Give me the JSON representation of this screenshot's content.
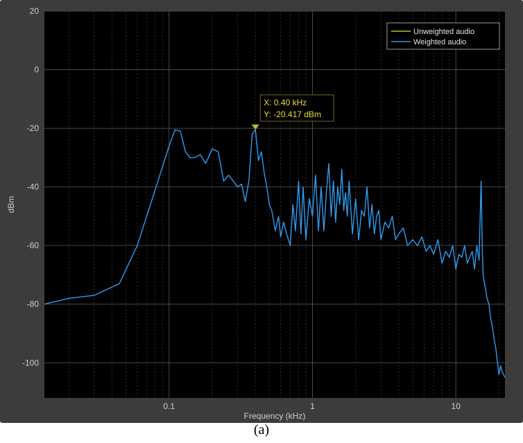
{
  "caption": "(a)",
  "colors": {
    "figure_background": "#3c3c3c",
    "plot_background": "#000000",
    "grid": "#3a3a3a",
    "tick_text": "#cfcfcf",
    "unweighted": "#c6c23a",
    "weighted": "#2f9cf0",
    "datatip_text": "#e8e030",
    "legend_border": "#9a9a9a"
  },
  "chart_data": {
    "type": "line",
    "title": "",
    "xlabel": "Frequency (kHz)",
    "ylabel": "dBm",
    "xscale": "log",
    "xlim": [
      0.0135,
      22
    ],
    "ylim": [
      -112,
      20
    ],
    "xticks": [
      0.1,
      1,
      10
    ],
    "xtick_labels": [
      "0.1",
      "1",
      "10"
    ],
    "yticks": [
      20,
      0,
      -20,
      -40,
      -60,
      -80,
      -100
    ],
    "ytick_labels": [
      "20",
      "0",
      "-20",
      "-40",
      "-60",
      "-80",
      "-100"
    ],
    "grid": true,
    "legend": {
      "placement": "top-right",
      "entries": [
        "Unweighted audio",
        "Weighted audio"
      ]
    },
    "series": [
      {
        "name": "Unweighted audio",
        "color": "#c6c23a",
        "x": [],
        "y": []
      },
      {
        "name": "Weighted audio",
        "color": "#2f9cf0",
        "x": [
          0.0135,
          0.02,
          0.03,
          0.045,
          0.06,
          0.08,
          0.1,
          0.11,
          0.12,
          0.13,
          0.14,
          0.15,
          0.165,
          0.18,
          0.2,
          0.22,
          0.24,
          0.26,
          0.28,
          0.3,
          0.32,
          0.34,
          0.36,
          0.38,
          0.4,
          0.42,
          0.44,
          0.46,
          0.48,
          0.5,
          0.52,
          0.55,
          0.58,
          0.6,
          0.63,
          0.66,
          0.7,
          0.73,
          0.76,
          0.8,
          0.83,
          0.86,
          0.9,
          0.95,
          1.0,
          1.05,
          1.1,
          1.15,
          1.2,
          1.25,
          1.3,
          1.35,
          1.4,
          1.45,
          1.5,
          1.55,
          1.6,
          1.65,
          1.7,
          1.75,
          1.8,
          1.9,
          2.0,
          2.1,
          2.2,
          2.3,
          2.4,
          2.5,
          2.6,
          2.7,
          2.8,
          2.9,
          3.0,
          3.2,
          3.4,
          3.6,
          3.8,
          4.0,
          4.3,
          4.6,
          5.0,
          5.4,
          5.8,
          6.2,
          6.6,
          7.0,
          7.5,
          8.0,
          8.5,
          9.0,
          9.5,
          10,
          10.5,
          11,
          11.5,
          12,
          12.5,
          13,
          13.5,
          14,
          14.5,
          15,
          15.3,
          15.5,
          15.7,
          16,
          16.5,
          17,
          17.5,
          18,
          18.5,
          19,
          19.5,
          20,
          20.5,
          21,
          21.5,
          22
        ],
        "y": [
          -80,
          -78,
          -77,
          -73,
          -60,
          -41,
          -26,
          -20.5,
          -21,
          -28,
          -30,
          -30,
          -29,
          -32,
          -27,
          -28,
          -38,
          -36,
          -38,
          -40,
          -39,
          -45,
          -38,
          -22,
          -20.4,
          -31,
          -28,
          -35,
          -40,
          -46,
          -48,
          -55,
          -50,
          -57,
          -52,
          -56,
          -60,
          -46,
          -55,
          -38,
          -56,
          -40,
          -58,
          -44,
          -50,
          -36,
          -55,
          -40,
          -55,
          -42,
          -32,
          -50,
          -38,
          -52,
          -40,
          -46,
          -34,
          -48,
          -42,
          -50,
          -38,
          -56,
          -44,
          -58,
          -48,
          -50,
          -40,
          -54,
          -46,
          -56,
          -50,
          -48,
          -58,
          -52,
          -54,
          -50,
          -58,
          -56,
          -54,
          -60,
          -58,
          -60,
          -57,
          -62,
          -60,
          -63,
          -58,
          -66,
          -62,
          -64,
          -60,
          -68,
          -63,
          -64,
          -60,
          -66,
          -64,
          -62,
          -68,
          -60,
          -65,
          -38,
          -62,
          -70,
          -72,
          -74,
          -78,
          -80,
          -85,
          -88,
          -92,
          -95,
          -100,
          -104,
          -101,
          -103,
          -104,
          -105
        ]
      }
    ],
    "annotations": [
      {
        "type": "datatip",
        "x": 0.4,
        "y": -20.417,
        "lines": [
          "X: 0.40 kHz",
          "Y: -20.417 dBm"
        ]
      }
    ]
  }
}
